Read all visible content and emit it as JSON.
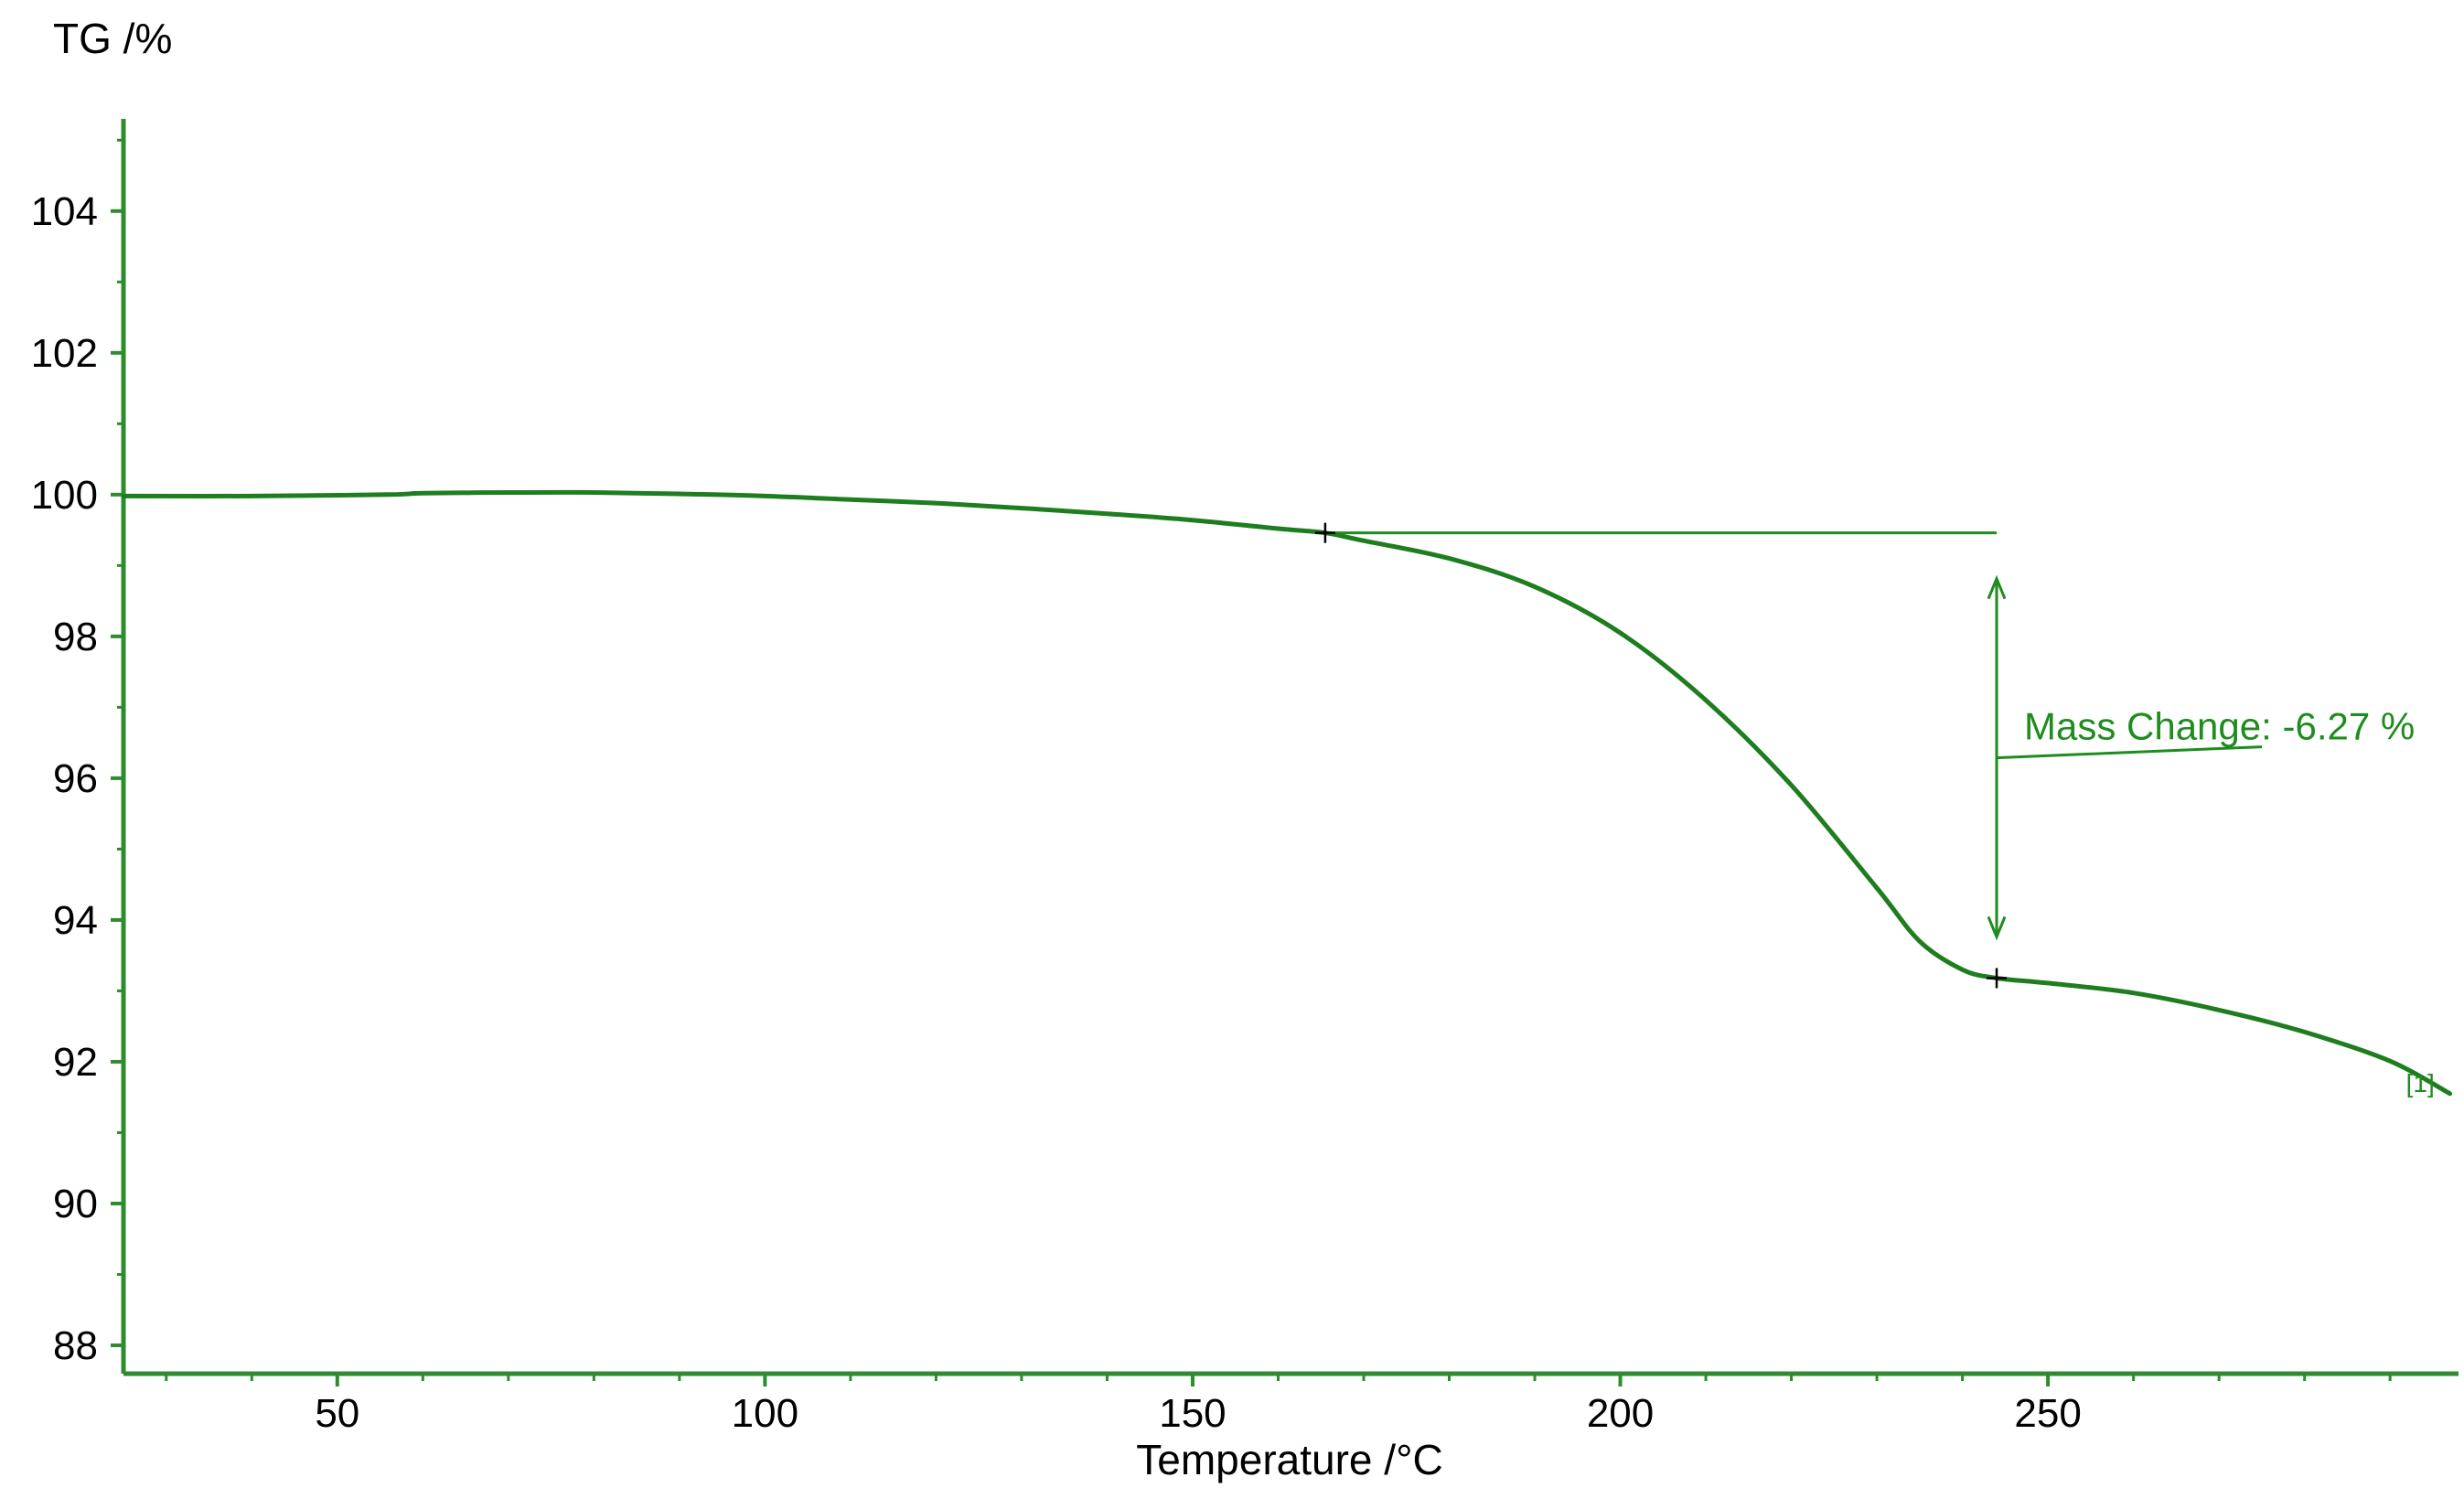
{
  "chart_data": {
    "type": "line",
    "ylabel": "TG /%",
    "xlabel": "Temperature /°C",
    "xlim": [
      25,
      298
    ],
    "ylim": [
      87.6,
      105.3
    ],
    "xticks": [
      50,
      100,
      150,
      200,
      250
    ],
    "xtick_labels": [
      "50",
      "100",
      "150",
      "200",
      "250"
    ],
    "yticks": [
      88,
      90,
      92,
      94,
      96,
      98,
      100,
      102,
      104
    ],
    "ytick_labels": [
      "88",
      "90",
      "92",
      "94",
      "96",
      "98",
      "100",
      "102",
      "104"
    ],
    "grid": false,
    "colors": {
      "curve": "#1e7d1e",
      "axis": "#2e8b2e",
      "annotation": "#1e8c1e",
      "text": "#000000"
    },
    "series": [
      {
        "x": [
          25,
          40,
          56,
          60,
          70,
          80,
          90,
          100,
          110,
          120,
          130,
          140,
          150,
          160,
          165.5,
          170,
          180,
          190,
          200,
          210,
          220,
          230,
          235,
          240,
          244,
          250,
          260,
          270,
          280,
          290,
          297
        ],
        "y": [
          99.98,
          99.98,
          100.0,
          100.02,
          100.03,
          100.03,
          100.01,
          99.98,
          99.93,
          99.88,
          99.81,
          99.73,
          99.64,
          99.52,
          99.46,
          99.35,
          99.1,
          98.7,
          98.05,
          97.1,
          95.9,
          94.45,
          93.7,
          93.3,
          93.18,
          93.11,
          92.97,
          92.73,
          92.42,
          92.01,
          91.55
        ]
      }
    ],
    "annotations": [
      {
        "text": "Mass Change: -6.27 %",
        "start_point": [
          165.5,
          99.46
        ],
        "end_point": [
          244,
          93.18
        ],
        "reference_line_y": 99.46,
        "arrow_x": 244
      }
    ],
    "curve_label": "[1]"
  }
}
